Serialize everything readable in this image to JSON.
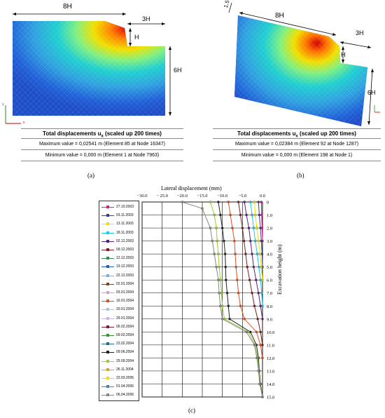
{
  "panel_a": {
    "dim_top": "8H",
    "dim_right_top": "3H",
    "dim_h": "H",
    "dim_side": "6H",
    "axis_y": "y",
    "axis_x": "x",
    "caption_title": "Total displacements u",
    "caption_sub": "x",
    "caption_suffix": " (scaled up 200 times)",
    "max_line": "Maximum value = 0,02541 m (Element 85 at Node 16347)",
    "min_line": "Minimum value = 0,000 m (Element 1 at Node 7963)",
    "label": "(a)"
  },
  "panel_b": {
    "dim_slope": "1.5 m",
    "dim_top": "8H",
    "dim_right_top": "3H",
    "dim_h": "H",
    "dim_side": "6H",
    "caption_title": "Total displacements u",
    "caption_sub": "x",
    "caption_suffix": " (scaled up 200 times)",
    "max_line": "Maximum value = 0,02384 m (Element 92 at Node 1287)",
    "min_line": "Minimum value = 0,000 m (Element 198 at Node 1)",
    "label": "(b)"
  },
  "panel_c": {
    "label": "(c)",
    "chart_data": {
      "type": "line",
      "xlabel": "Lateral displacement (mm)",
      "ylabel": "Excavation height (m)",
      "xlim": [
        -30,
        0
      ],
      "ylim": [
        15,
        0
      ],
      "x_ticks": [
        "−30.0",
        "− 25.0",
        "−20.0",
        "−15.0",
        "−10.0",
        "−5.0",
        "0.0"
      ],
      "y_ticks": [
        "0",
        "1.0",
        "2.0",
        "3.0",
        "4.0",
        "5.0",
        "6.0",
        "7.0",
        "8.0",
        "9.0",
        "10.0",
        "11.0",
        "12.0",
        "13.0",
        "14.0",
        "15.0"
      ],
      "legend": [
        {
          "name": "27.10.2003",
          "color": "#e6198c"
        },
        {
          "name": "03.11.2003",
          "color": "#3a3a9e"
        },
        {
          "name": "13.11.2003",
          "color": "#f0e000"
        },
        {
          "name": "18.11.2003",
          "color": "#1fc8e6"
        },
        {
          "name": "02.12.2003",
          "color": "#5a1e7a"
        },
        {
          "name": "09.12.2003",
          "color": "#7a1e1e"
        },
        {
          "name": "12.12.2003",
          "color": "#2e8b57"
        },
        {
          "name": "19.12.2003",
          "color": "#1e5fb4"
        },
        {
          "name": "22.12.2003",
          "color": "#66b2ff"
        },
        {
          "name": "02.01.2004",
          "color": "#8b4513"
        },
        {
          "name": "03.01.2004",
          "color": "#c8a0c8"
        },
        {
          "name": "16.01.2004",
          "color": "#e0501e"
        },
        {
          "name": "20.01.2004",
          "color": "#a0c8e6"
        },
        {
          "name": "29.01.2004",
          "color": "#c8b4e6"
        },
        {
          "name": "06.02.2004",
          "color": "#7a1e3c"
        },
        {
          "name": "09.02.2004",
          "color": "#3c8c3c"
        },
        {
          "name": "23.02.2004",
          "color": "#1e6e8c"
        },
        {
          "name": "09.06.2004",
          "color": "#222222"
        },
        {
          "name": "25.09.2004",
          "color": "#9acd32"
        },
        {
          "name": "26.11.2004",
          "color": "#e6a01e"
        },
        {
          "name": "22.03.2005",
          "color": "#ffd700"
        },
        {
          "name": "01.04.2006",
          "color": "#4682b4"
        },
        {
          "name": "06.04.2006",
          "color": "#888888"
        }
      ],
      "series": [
        {
          "name": "27.10.2003",
          "x": [
            -0.3,
            -0.2,
            -0.1,
            0
          ],
          "y": [
            0,
            1,
            2,
            3
          ]
        },
        {
          "name": "03.11.2003",
          "x": [
            -1.0,
            -0.8,
            -0.5,
            -0.3,
            -0.1,
            0
          ],
          "y": [
            0,
            1,
            2,
            3,
            4,
            5
          ]
        },
        {
          "name": "13.11.2003",
          "x": [
            -2.0,
            -1.8,
            -1.4,
            -1.0,
            -0.6,
            -0.3,
            0
          ],
          "y": [
            0,
            1,
            2,
            3,
            4,
            5,
            6
          ]
        },
        {
          "name": "18.11.2003",
          "x": [
            -3.0,
            -2.6,
            -2.2,
            -1.8,
            -1.3,
            -0.9,
            -0.5,
            -0.2,
            0
          ],
          "y": [
            0,
            1,
            2,
            3,
            4,
            5,
            6,
            7,
            8
          ]
        },
        {
          "name": "02.12.2003",
          "x": [
            -4.5,
            -4.0,
            -3.4,
            -3.0,
            -2.6,
            -2.2,
            -1.6,
            -1.0,
            -0.5,
            0
          ],
          "y": [
            0,
            1,
            2,
            3,
            4,
            5,
            6,
            7,
            8,
            9
          ]
        },
        {
          "name": "09.12.2003",
          "x": [
            -6.0,
            -5.5,
            -5.0,
            -4.6,
            -4.2,
            -3.8,
            -3.2,
            -2.6,
            -2.0,
            -1.2,
            -0.5,
            0
          ],
          "y": [
            0,
            1,
            2,
            3,
            4,
            5,
            6,
            7,
            8,
            9,
            10,
            11
          ]
        },
        {
          "name": "16.01.2004",
          "x": [
            -8.5,
            -8.0,
            -7.5,
            -7.0,
            -6.8,
            -6.6,
            -6.3,
            -6.0,
            -5.5,
            -4.5,
            -1.5,
            -0.5,
            0
          ],
          "y": [
            0,
            1,
            2,
            3,
            4,
            5,
            6,
            7,
            8,
            9,
            10,
            11,
            12
          ]
        },
        {
          "name": "09.06.2004",
          "x": [
            -11.0,
            -10.5,
            -10.0,
            -9.6,
            -9.3,
            -9.2,
            -9.1,
            -8.8,
            -8.5,
            -8.2,
            -3.0,
            -1.5,
            -1.0,
            -0.8,
            -0.5,
            0
          ],
          "y": [
            0,
            1,
            2,
            3,
            4,
            5,
            6,
            7,
            8,
            9,
            10,
            11,
            12,
            13,
            14,
            15
          ]
        },
        {
          "name": "25.09.2004",
          "x": [
            -13.0,
            -12.0,
            -11.5,
            -11.3,
            -11.0,
            -10.8,
            -10.5,
            -10.2,
            -10.0,
            -9.5,
            -3.5,
            -1.8,
            -1.2,
            -0.9,
            -0.6,
            0
          ],
          "y": [
            0,
            1,
            2,
            3,
            4,
            5,
            6,
            7,
            8,
            9,
            10,
            11,
            12,
            13,
            14,
            15
          ]
        },
        {
          "name": "06.04.2006",
          "x": [
            -20.0,
            -15.0,
            -13.0,
            -12.5,
            -12.0,
            -11.5,
            -11.0,
            -10.8,
            -10.5,
            -10.0,
            -4.0,
            -2.0,
            -1.4,
            -1.0,
            -0.7,
            0
          ],
          "y": [
            0,
            0.5,
            2,
            3,
            4,
            5,
            6,
            7,
            8,
            9,
            10,
            11,
            12,
            13,
            14,
            15
          ]
        }
      ]
    }
  }
}
